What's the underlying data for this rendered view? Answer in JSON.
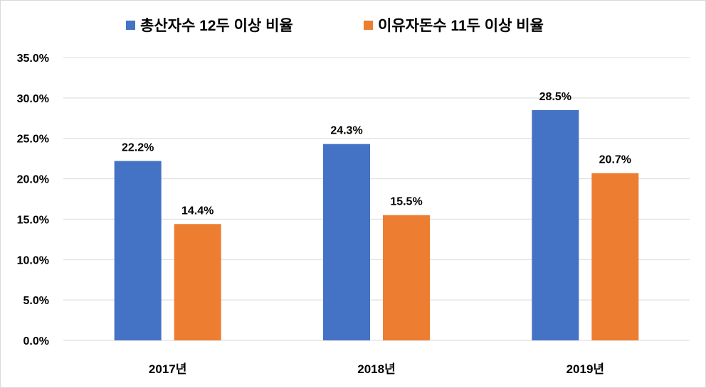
{
  "chart_data": {
    "type": "bar",
    "title": "",
    "xlabel": "",
    "ylabel": "",
    "categories": [
      "2017년",
      "2018년",
      "2019년"
    ],
    "series": [
      {
        "name": "총산자수 12두 이상 비율",
        "values": [
          22.2,
          24.3,
          28.5
        ],
        "labels": [
          "22.2%",
          "24.3%",
          "28.5%"
        ],
        "color": "#4472C4"
      },
      {
        "name": "이유자돈수 11두 이상 비율",
        "values": [
          14.4,
          15.5,
          20.7
        ],
        "labels": [
          "14.4%",
          "15.5%",
          "20.7%"
        ],
        "color": "#ED7D31"
      }
    ],
    "ylim": [
      0,
      35
    ],
    "yticks": [
      0,
      5,
      10,
      15,
      20,
      25,
      30,
      35
    ],
    "ytick_labels": [
      "0.0%",
      "5.0%",
      "10.0%",
      "15.0%",
      "20.0%",
      "25.0%",
      "30.0%",
      "35.0%"
    ],
    "grid": true,
    "legend_position": "top",
    "gridline_color": "#d9d9d9"
  }
}
